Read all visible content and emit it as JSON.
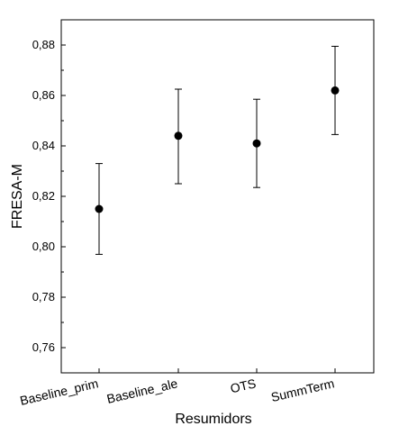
{
  "chart_data": {
    "type": "scatter",
    "title": "",
    "xlabel": "Resumidors",
    "ylabel": "FRESA-M",
    "categories": [
      "Baseline_prim",
      "Baseline_ale",
      "OTS",
      "SummTerm"
    ],
    "values": [
      0.815,
      0.844,
      0.841,
      0.862
    ],
    "error_low": [
      0.797,
      0.825,
      0.8235,
      0.8445
    ],
    "error_high": [
      0.833,
      0.8625,
      0.8585,
      0.8795
    ],
    "ylim": [
      0.75,
      0.89
    ],
    "yticks": [
      0.76,
      0.78,
      0.8,
      0.82,
      0.84,
      0.86,
      0.88
    ],
    "ytick_labels": [
      "0,76",
      "0,78",
      "0,80",
      "0,82",
      "0,84",
      "0,86",
      "0,88"
    ],
    "grid": false,
    "legend": "none",
    "colors": {
      "marker": "#000000",
      "axis": "#000000"
    }
  }
}
